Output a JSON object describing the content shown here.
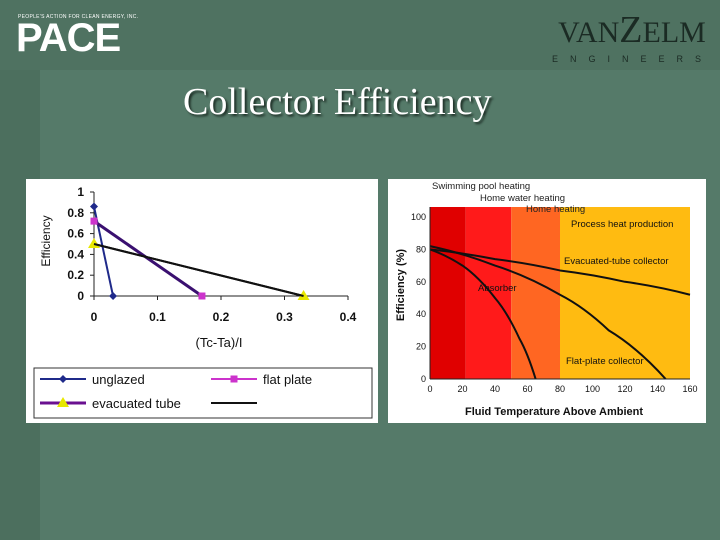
{
  "header": {
    "pace_tagline": "PEOPLE'S ACTION FOR CLEAN ENERGY, INC.",
    "pace_logo": "PACE",
    "vanzelm_logo_left": "VAN",
    "vanzelm_logo_z": "Z",
    "vanzelm_logo_right": "ELM",
    "vanzelm_sub": "ENGINEERS"
  },
  "slide": {
    "title": "Collector Efficiency"
  },
  "colors": {
    "background": "#557a69",
    "unglazed": "#1f2a8a",
    "flat_plate": "#cc33cc",
    "evacuated_tube": "#e8e800"
  },
  "chart_data": [
    {
      "type": "line",
      "ylabel": "Efficiency",
      "xlabel": "(Tc-Ta)/I",
      "xlim": [
        0,
        0.4
      ],
      "ylim": [
        0,
        1
      ],
      "x_ticks": [
        "0",
        "0.1",
        "0.2",
        "0.3",
        "0.4"
      ],
      "y_ticks": [
        "0",
        "0.2",
        "0.4",
        "0.6",
        "0.8",
        "1"
      ],
      "legend_position": "bottom",
      "series": [
        {
          "name": "unglazed",
          "marker": "diamond",
          "x": [
            0,
            0.03
          ],
          "y": [
            0.86,
            0
          ]
        },
        {
          "name": "flat plate",
          "marker": "square",
          "x": [
            0,
            0.17
          ],
          "y": [
            0.72,
            0
          ]
        },
        {
          "name": "evacuated tube",
          "marker": "triangle",
          "x": [
            0,
            0.33
          ],
          "y": [
            0.5,
            0
          ]
        },
        {
          "name": "",
          "marker": "none",
          "x": [
            0,
            0.33
          ],
          "y": [
            0.5,
            0
          ]
        }
      ]
    },
    {
      "type": "line",
      "ylabel": "Efficiency (%)",
      "xlabel": "Fluid Temperature Above Ambient",
      "xlim": [
        0,
        160
      ],
      "ylim": [
        0,
        100
      ],
      "x_ticks": [
        "0",
        "20",
        "40",
        "60",
        "80",
        "100",
        "120",
        "140",
        "160"
      ],
      "y_ticks": [
        "0",
        "20",
        "40",
        "60",
        "80",
        "100"
      ],
      "bands": [
        {
          "label": "Swimming pool heating",
          "x": [
            0,
            22
          ],
          "color": "#e00000"
        },
        {
          "label": "Home water heating",
          "x": [
            22,
            50
          ],
          "color": "#ff1a1a"
        },
        {
          "label": "Home heating",
          "x": [
            50,
            80
          ],
          "color": "#ff6622"
        },
        {
          "label": "Process heat production",
          "x": [
            80,
            160
          ],
          "color": "#ffbb11"
        }
      ],
      "series": [
        {
          "name": "Absorber",
          "x": [
            0,
            20,
            40,
            55,
            65
          ],
          "y": [
            80,
            70,
            50,
            25,
            0
          ]
        },
        {
          "name": "Evacuated-tube collector",
          "x": [
            0,
            40,
            80,
            120,
            160
          ],
          "y": [
            80,
            74,
            67,
            60,
            52
          ]
        },
        {
          "name": "Flat-plate collector",
          "x": [
            0,
            40,
            80,
            110,
            145
          ],
          "y": [
            82,
            70,
            52,
            30,
            0
          ]
        }
      ]
    }
  ]
}
